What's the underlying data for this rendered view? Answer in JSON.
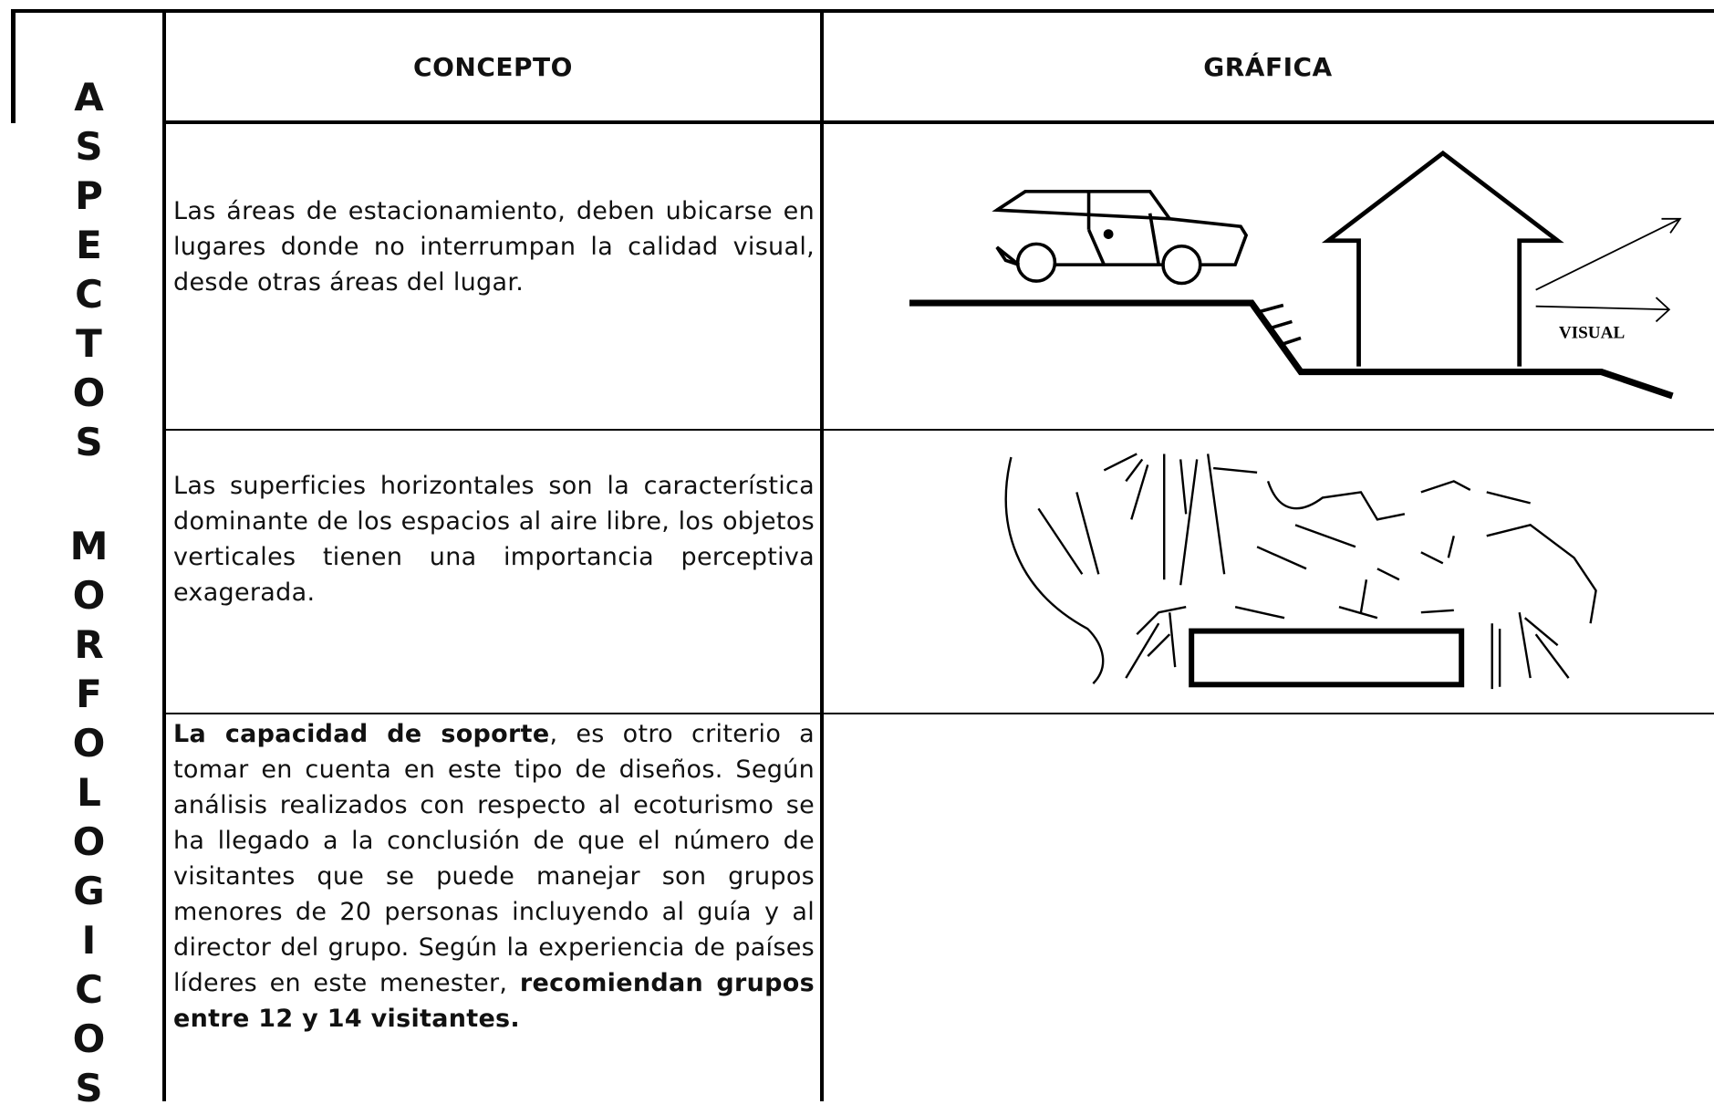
{
  "side_label": [
    "ASPECTOS",
    "MORFOLOGICOS"
  ],
  "header": {
    "concept": "CONCEPTO",
    "graphic": "GRÁFICA"
  },
  "table": {
    "rows": [
      {
        "concept": [
          {
            "text": "Las áreas de estacionamiento, deben ubicarse en lugares donde no interrumpan la calidad visual, desde otras áreas del lugar.",
            "bold": false
          }
        ],
        "graphic_label": "VISUAL"
      },
      {
        "concept": [
          {
            "text": "Las superficies horizontales son la característica dominante de los espacios al aire libre, los objetos verticales tienen una importancia perceptiva exagerada.",
            "bold": false
          }
        ]
      },
      {
        "concept": [
          {
            "text": "La capacidad de soporte",
            "bold": true
          },
          {
            "text": ", es otro criterio a tomar en cuenta en este tipo de diseños. Según análisis realizados con respecto al ecoturismo se ha llegado a la conclusión de que el número de visitantes que se puede manejar son grupos menores de 20 personas incluyendo al guía y al director del grupo. Según la experiencia de países líderes en este menester, ",
            "bold": false
          },
          {
            "text": "recomiendan grupos entre 12 y 14 visitantes.",
            "bold": true
          }
        ]
      }
    ]
  }
}
